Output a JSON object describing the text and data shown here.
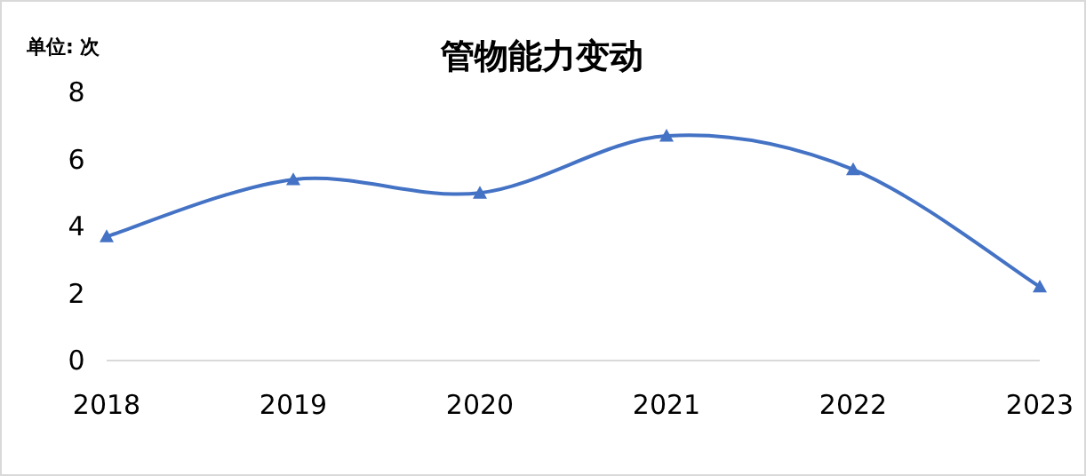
{
  "chart_data": {
    "type": "line",
    "title": "管物能力变动",
    "annotations": [
      "单位: 次"
    ],
    "categories": [
      "2018",
      "2019",
      "2020",
      "2021",
      "2022",
      "2023"
    ],
    "series": [
      {
        "color": "#4472c4",
        "values": [
          3.7,
          5.4,
          5.0,
          6.7,
          5.7,
          2.2
        ]
      }
    ],
    "ylim": [
      0,
      8
    ],
    "yticks": [
      0,
      2,
      4,
      6,
      8
    ],
    "marker": "triangle",
    "line_style": "solid",
    "grid": false
  }
}
